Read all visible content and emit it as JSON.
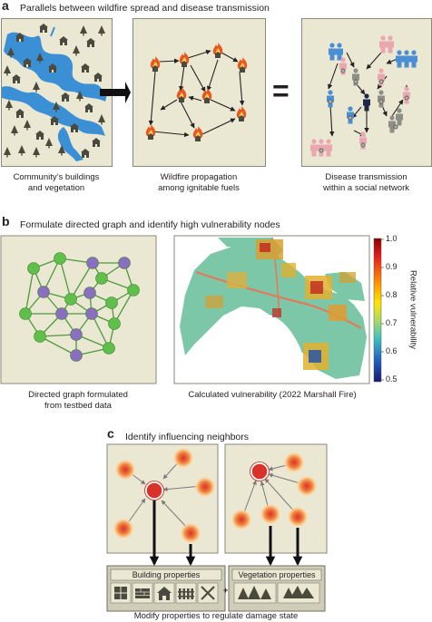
{
  "panel_a": {
    "letter": "a",
    "heading": "Parallels between wildfire spread and disease transmission",
    "caption_left_1": "Community’s buildings",
    "caption_left_2": "and vegetation",
    "caption_mid_1": "Wildfire propagation",
    "caption_mid_2": "among ignitable fuels",
    "caption_right_1": "Disease transmission",
    "caption_right_2": "within a social network",
    "equals": "="
  },
  "panel_b": {
    "letter": "b",
    "heading": "Formulate directed graph and identify high vulnerability nodes",
    "caption_left_1": "Directed graph formulated",
    "caption_left_2": "from testbed data",
    "caption_right": "Calculated vulnerability (2022 Marshall Fire)",
    "colorbar": {
      "label": "Relative vulnerability",
      "ticks": [
        "1.0",
        "0.9",
        "0.8",
        "0.7",
        "0.6",
        "0.5"
      ]
    }
  },
  "panel_c": {
    "letter": "c",
    "heading": "Identify influencing neighbors",
    "building_label": "Building properties",
    "vegetation_label": "Vegetation properties",
    "plus": "+",
    "caption": "Modify properties to regulate damage state"
  },
  "colors": {
    "panel_bg": "#eae7d3",
    "water": "#3b8fd4",
    "tree": "#4a4a3a",
    "house": "#4b4a3f",
    "graph_green": "#5fbf4a",
    "graph_purple": "#8a6fc0",
    "edge_green": "#4c9a3a",
    "fire": "#e8571d",
    "person_blue": "#4a8ed3",
    "person_pink": "#eba7b0",
    "person_gray": "#8d8f86",
    "person_dark": "#1d2a44",
    "node_red": "#d8322a"
  }
}
